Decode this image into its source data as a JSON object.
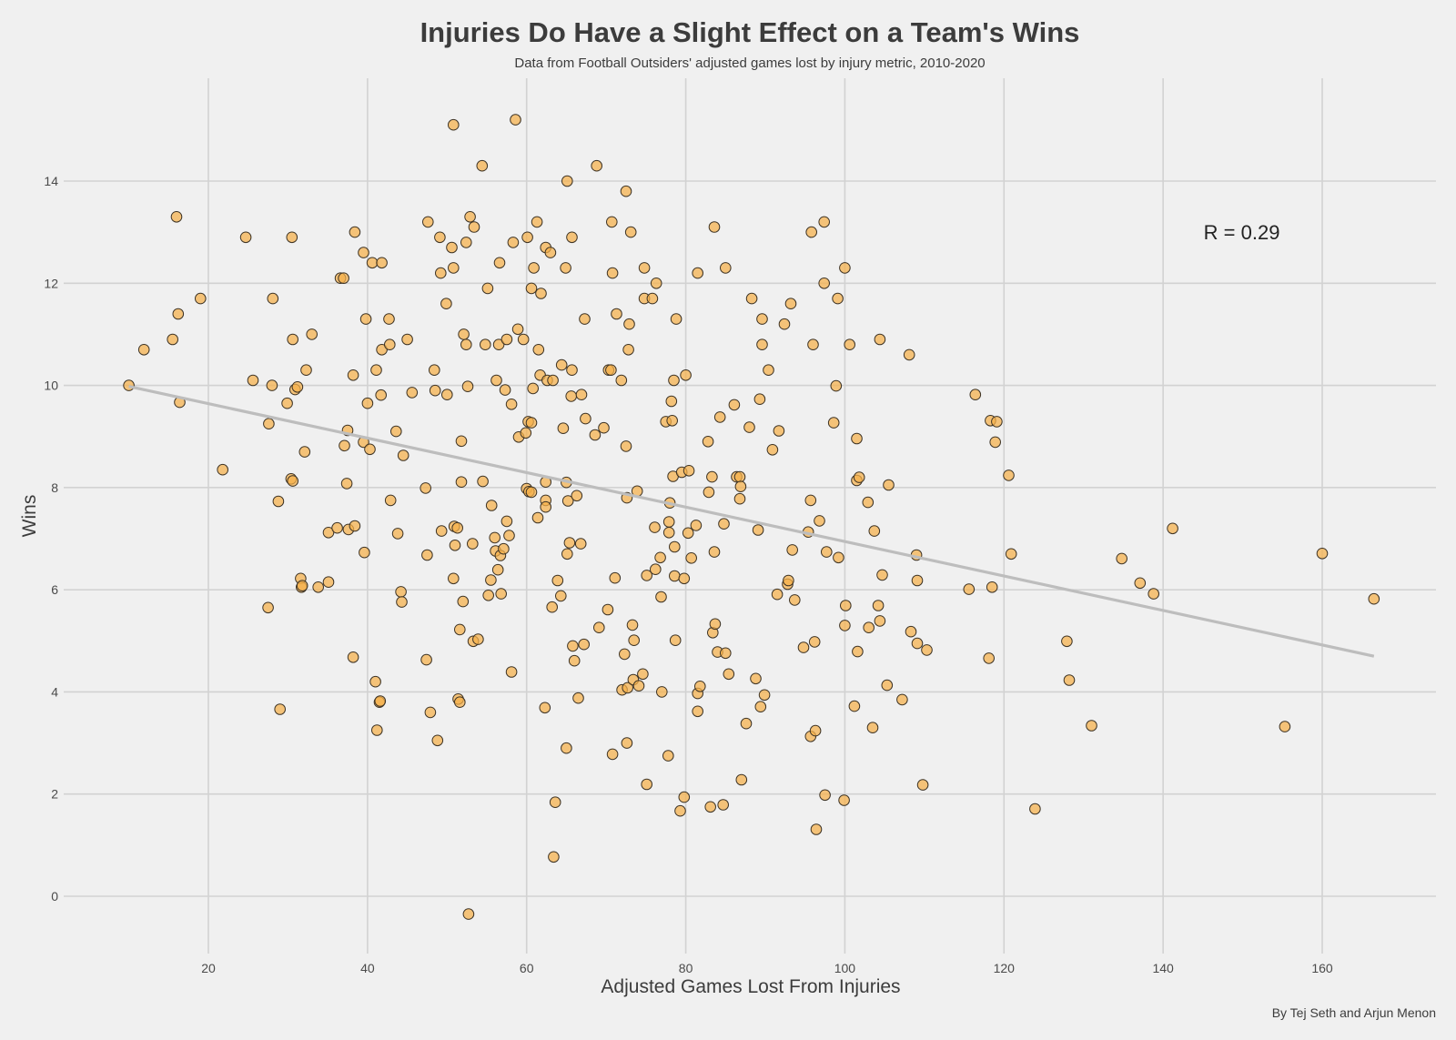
{
  "chart_data": {
    "type": "scatter",
    "title": "Injuries Do Have a Slight Effect on a Team's Wins",
    "subtitle": "Data from Football Outsiders' adjusted games lost by injury metric, 2010-2020",
    "xlabel": "Adjusted Games Lost From Injuries",
    "ylabel": "Wins",
    "caption": "By Tej Seth and Arjun Menon",
    "annotation": {
      "text": "R = 0.29",
      "x": 150,
      "y": 13
    },
    "xlim": [
      0.5,
      175
    ],
    "ylim": [
      -1.2,
      15.6
    ],
    "xticks": [
      20,
      40,
      60,
      80,
      100,
      120,
      140,
      160
    ],
    "yticks": [
      0,
      2,
      4,
      6,
      8,
      10,
      12,
      14
    ],
    "grid": true,
    "trend_line": {
      "x": [
        10,
        166.5
      ],
      "y": [
        9.98,
        4.7
      ]
    },
    "colors": {
      "point_fill": "#f5b04a",
      "point_stroke": "#3d3325",
      "trend": "#bdbdbd",
      "grid": "#d2d2d2",
      "background": "#f0f0f0"
    },
    "points": [
      [
        10,
        10
      ],
      [
        11.9,
        10.7
      ],
      [
        15.5,
        10.9
      ],
      [
        16,
        13.3
      ],
      [
        16.2,
        11.4
      ],
      [
        16.4,
        9.67
      ],
      [
        19,
        11.7
      ],
      [
        21.8,
        8.35
      ],
      [
        24.7,
        12.9
      ],
      [
        25.6,
        10.1
      ],
      [
        27.5,
        5.65
      ],
      [
        27.6,
        9.25
      ],
      [
        28,
        10
      ],
      [
        28.1,
        11.7
      ],
      [
        28.8,
        7.73
      ],
      [
        29,
        3.66
      ],
      [
        29.9,
        9.65
      ],
      [
        30.4,
        8.17
      ],
      [
        30.5,
        12.9
      ],
      [
        30.6,
        10.9
      ],
      [
        30.6,
        8.13
      ],
      [
        30.9,
        9.92
      ],
      [
        31.2,
        9.97
      ],
      [
        31.6,
        6.22
      ],
      [
        31.7,
        6.05
      ],
      [
        31.8,
        6.08
      ],
      [
        32.1,
        8.7
      ],
      [
        32.3,
        10.3
      ],
      [
        33,
        11
      ],
      [
        33.8,
        6.05
      ],
      [
        35.1,
        7.12
      ],
      [
        35.1,
        6.15
      ],
      [
        36.2,
        7.21
      ],
      [
        36.6,
        12.1
      ],
      [
        37,
        12.1
      ],
      [
        37.1,
        8.82
      ],
      [
        37.4,
        8.08
      ],
      [
        37.5,
        9.12
      ],
      [
        37.6,
        7.18
      ],
      [
        38.2,
        10.2
      ],
      [
        38.2,
        4.68
      ],
      [
        38.4,
        13
      ],
      [
        38.4,
        7.25
      ],
      [
        39.5,
        12.6
      ],
      [
        39.5,
        8.89
      ],
      [
        39.6,
        6.73
      ],
      [
        39.8,
        11.3
      ],
      [
        40,
        9.65
      ],
      [
        40.3,
        8.75
      ],
      [
        40.6,
        12.4
      ],
      [
        41,
        4.2
      ],
      [
        41.1,
        10.3
      ],
      [
        41.2,
        3.25
      ],
      [
        41.5,
        3.8
      ],
      [
        41.6,
        3.82
      ],
      [
        41.7,
        9.81
      ],
      [
        41.8,
        10.7
      ],
      [
        41.8,
        12.4
      ],
      [
        42.7,
        11.3
      ],
      [
        42.8,
        10.8
      ],
      [
        42.9,
        7.75
      ],
      [
        43.6,
        9.1
      ],
      [
        43.8,
        7.1
      ],
      [
        44.2,
        5.96
      ],
      [
        44.3,
        5.76
      ],
      [
        44.5,
        8.63
      ],
      [
        45,
        10.9
      ],
      [
        45.6,
        9.86
      ],
      [
        47.3,
        7.99
      ],
      [
        47.4,
        4.63
      ],
      [
        47.5,
        6.68
      ],
      [
        47.6,
        13.2
      ],
      [
        47.9,
        3.6
      ],
      [
        48.4,
        10.3
      ],
      [
        48.5,
        9.9
      ],
      [
        48.8,
        3.05
      ],
      [
        49.1,
        12.9
      ],
      [
        49.2,
        12.2
      ],
      [
        49.3,
        7.15
      ],
      [
        49.9,
        11.6
      ],
      [
        50,
        9.82
      ],
      [
        50.6,
        12.7
      ],
      [
        50.8,
        15.1
      ],
      [
        50.8,
        12.3
      ],
      [
        50.8,
        6.22
      ],
      [
        50.9,
        7.24
      ],
      [
        51,
        6.87
      ],
      [
        51.3,
        7.21
      ],
      [
        51.4,
        3.86
      ],
      [
        51.6,
        5.22
      ],
      [
        51.6,
        3.8
      ],
      [
        51.8,
        8.11
      ],
      [
        51.8,
        8.91
      ],
      [
        52,
        5.77
      ],
      [
        52.1,
        11
      ],
      [
        52.4,
        12.8
      ],
      [
        52.4,
        10.8
      ],
      [
        52.6,
        9.98
      ],
      [
        52.7,
        -0.35
      ],
      [
        52.9,
        13.3
      ],
      [
        53.2,
        6.9
      ],
      [
        53.3,
        4.99
      ],
      [
        53.4,
        13.1
      ],
      [
        53.9,
        5.03
      ],
      [
        54.4,
        14.3
      ],
      [
        54.5,
        8.12
      ],
      [
        54.8,
        10.8
      ],
      [
        55.1,
        11.9
      ],
      [
        55.2,
        5.89
      ],
      [
        55.5,
        6.19
      ],
      [
        55.6,
        7.65
      ],
      [
        56,
        7.02
      ],
      [
        56.1,
        6.76
      ],
      [
        56.2,
        10.1
      ],
      [
        56.4,
        6.39
      ],
      [
        56.5,
        10.8
      ],
      [
        56.6,
        12.4
      ],
      [
        56.7,
        6.67
      ],
      [
        56.8,
        5.92
      ],
      [
        57.1,
        6.8
      ],
      [
        57.3,
        9.91
      ],
      [
        57.5,
        10.9
      ],
      [
        57.5,
        7.34
      ],
      [
        57.8,
        7.06
      ],
      [
        58.1,
        9.63
      ],
      [
        58.1,
        4.39
      ],
      [
        58.3,
        12.8
      ],
      [
        58.6,
        15.2
      ],
      [
        58.9,
        11.1
      ],
      [
        59,
        8.99
      ],
      [
        59.6,
        10.9
      ],
      [
        59.9,
        9.07
      ],
      [
        60,
        7.98
      ],
      [
        60.1,
        12.9
      ],
      [
        60.2,
        9.29
      ],
      [
        60.3,
        7.92
      ],
      [
        60.6,
        9.27
      ],
      [
        60.6,
        7.91
      ],
      [
        60.6,
        11.9
      ],
      [
        60.8,
        9.94
      ],
      [
        60.9,
        12.3
      ],
      [
        61.3,
        13.2
      ],
      [
        61.4,
        7.41
      ],
      [
        61.5,
        10.7
      ],
      [
        61.7,
        10.2
      ],
      [
        61.8,
        11.8
      ],
      [
        62.3,
        3.69
      ],
      [
        62.4,
        12.7
      ],
      [
        62.4,
        8.11
      ],
      [
        62.4,
        7.75
      ],
      [
        62.4,
        7.62
      ],
      [
        62.6,
        10.1
      ],
      [
        63,
        12.6
      ],
      [
        63.2,
        5.66
      ],
      [
        63.3,
        10.1
      ],
      [
        63.4,
        0.77
      ],
      [
        63.6,
        1.84
      ],
      [
        63.9,
        6.18
      ],
      [
        64.3,
        5.88
      ],
      [
        64.4,
        10.4
      ],
      [
        64.6,
        9.16
      ],
      [
        64.9,
        12.3
      ],
      [
        65,
        8.1
      ],
      [
        65,
        2.9
      ],
      [
        65.1,
        6.7
      ],
      [
        65.1,
        14
      ],
      [
        65.2,
        7.74
      ],
      [
        65.4,
        6.92
      ],
      [
        65.6,
        9.79
      ],
      [
        65.7,
        12.9
      ],
      [
        65.7,
        10.3
      ],
      [
        65.8,
        4.9
      ],
      [
        66,
        4.61
      ],
      [
        66.3,
        7.84
      ],
      [
        66.5,
        3.88
      ],
      [
        66.8,
        6.9
      ],
      [
        66.9,
        9.82
      ],
      [
        67.2,
        4.93
      ],
      [
        67.3,
        11.3
      ],
      [
        67.4,
        9.35
      ],
      [
        68.6,
        9.03
      ],
      [
        68.8,
        14.3
      ],
      [
        69.1,
        5.26
      ],
      [
        69.7,
        9.17
      ],
      [
        70.2,
        5.61
      ],
      [
        70.3,
        10.3
      ],
      [
        70.6,
        10.3
      ],
      [
        70.7,
        13.2
      ],
      [
        70.8,
        2.78
      ],
      [
        70.8,
        12.2
      ],
      [
        71.1,
        6.23
      ],
      [
        71.3,
        11.4
      ],
      [
        71.9,
        10.1
      ],
      [
        72,
        4.04
      ],
      [
        72.3,
        4.74
      ],
      [
        72.5,
        13.8
      ],
      [
        72.5,
        8.81
      ],
      [
        72.6,
        7.8
      ],
      [
        72.6,
        3
      ],
      [
        72.7,
        4.08
      ],
      [
        72.8,
        10.7
      ],
      [
        72.9,
        11.2
      ],
      [
        73.1,
        13
      ],
      [
        73.3,
        5.31
      ],
      [
        73.4,
        4.24
      ],
      [
        73.5,
        5.01
      ],
      [
        73.9,
        7.93
      ],
      [
        74.1,
        4.12
      ],
      [
        74.6,
        4.35
      ],
      [
        74.8,
        12.3
      ],
      [
        74.8,
        11.7
      ],
      [
        75.1,
        6.28
      ],
      [
        75.1,
        2.19
      ],
      [
        75.8,
        11.7
      ],
      [
        76.1,
        7.22
      ],
      [
        76.2,
        6.4
      ],
      [
        76.3,
        12
      ],
      [
        76.8,
        6.63
      ],
      [
        76.9,
        5.86
      ],
      [
        77,
        4
      ],
      [
        77.5,
        9.29
      ],
      [
        77.8,
        2.75
      ],
      [
        77.9,
        7.33
      ],
      [
        77.9,
        7.12
      ],
      [
        78,
        7.7
      ],
      [
        78.2,
        9.69
      ],
      [
        78.3,
        9.31
      ],
      [
        78.4,
        8.22
      ],
      [
        78.5,
        10.1
      ],
      [
        78.6,
        6.27
      ],
      [
        78.6,
        6.84
      ],
      [
        78.7,
        5.01
      ],
      [
        78.8,
        11.3
      ],
      [
        79.3,
        1.67
      ],
      [
        79.5,
        8.3
      ],
      [
        79.8,
        6.22
      ],
      [
        79.8,
        1.94
      ],
      [
        80,
        10.2
      ],
      [
        80.3,
        7.11
      ],
      [
        80.4,
        8.33
      ],
      [
        80.7,
        6.62
      ],
      [
        81.3,
        7.26
      ],
      [
        81.5,
        3.62
      ],
      [
        81.5,
        3.97
      ],
      [
        81.5,
        12.2
      ],
      [
        81.8,
        4.11
      ],
      [
        82.8,
        8.9
      ],
      [
        82.9,
        7.91
      ],
      [
        83.1,
        1.75
      ],
      [
        83.3,
        8.21
      ],
      [
        83.4,
        5.16
      ],
      [
        83.6,
        13.1
      ],
      [
        83.6,
        6.74
      ],
      [
        83.7,
        5.33
      ],
      [
        84,
        4.78
      ],
      [
        84.3,
        9.38
      ],
      [
        84.7,
        1.79
      ],
      [
        84.8,
        7.29
      ],
      [
        85,
        12.3
      ],
      [
        85,
        4.76
      ],
      [
        85.4,
        4.35
      ],
      [
        86.1,
        9.62
      ],
      [
        86.4,
        8.21
      ],
      [
        86.8,
        8.21
      ],
      [
        86.8,
        7.78
      ],
      [
        86.9,
        8.02
      ],
      [
        87,
        2.28
      ],
      [
        87.6,
        3.38
      ],
      [
        88,
        9.18
      ],
      [
        88.3,
        11.7
      ],
      [
        88.8,
        4.26
      ],
      [
        89.1,
        7.17
      ],
      [
        89.3,
        9.73
      ],
      [
        89.4,
        3.71
      ],
      [
        89.6,
        11.3
      ],
      [
        89.6,
        10.8
      ],
      [
        89.9,
        3.94
      ],
      [
        90.4,
        10.3
      ],
      [
        90.9,
        8.74
      ],
      [
        91.5,
        5.91
      ],
      [
        91.7,
        9.11
      ],
      [
        92.4,
        11.2
      ],
      [
        92.8,
        6.11
      ],
      [
        92.9,
        6.18
      ],
      [
        93.2,
        11.6
      ],
      [
        93.4,
        6.78
      ],
      [
        93.7,
        5.8
      ],
      [
        94.8,
        4.87
      ],
      [
        95.4,
        7.13
      ],
      [
        95.7,
        7.75
      ],
      [
        95.7,
        3.13
      ],
      [
        95.8,
        13
      ],
      [
        96,
        10.8
      ],
      [
        96.2,
        4.98
      ],
      [
        96.3,
        3.24
      ],
      [
        96.4,
        1.31
      ],
      [
        96.8,
        7.35
      ],
      [
        97.4,
        13.2
      ],
      [
        97.4,
        12
      ],
      [
        97.5,
        1.98
      ],
      [
        97.7,
        6.74
      ],
      [
        98.6,
        9.27
      ],
      [
        98.9,
        9.99
      ],
      [
        99.1,
        11.7
      ],
      [
        99.2,
        6.63
      ],
      [
        99.9,
        1.88
      ],
      [
        100,
        12.3
      ],
      [
        100,
        5.3
      ],
      [
        100.1,
        5.69
      ],
      [
        100.6,
        10.8
      ],
      [
        101.2,
        3.72
      ],
      [
        101.5,
        8.96
      ],
      [
        101.5,
        8.14
      ],
      [
        101.6,
        4.79
      ],
      [
        101.8,
        8.2
      ],
      [
        102.9,
        7.71
      ],
      [
        103,
        5.26
      ],
      [
        103.5,
        3.3
      ],
      [
        103.7,
        7.15
      ],
      [
        104.2,
        5.69
      ],
      [
        104.4,
        5.39
      ],
      [
        104.4,
        10.9
      ],
      [
        104.7,
        6.29
      ],
      [
        105.3,
        4.13
      ],
      [
        105.5,
        8.05
      ],
      [
        107.2,
        3.85
      ],
      [
        108.1,
        10.6
      ],
      [
        108.3,
        5.18
      ],
      [
        109,
        6.68
      ],
      [
        109.1,
        6.18
      ],
      [
        109.1,
        4.95
      ],
      [
        109.8,
        2.18
      ],
      [
        110.3,
        4.82
      ],
      [
        115.6,
        6.01
      ],
      [
        116.4,
        9.82
      ],
      [
        118.1,
        4.66
      ],
      [
        118.3,
        9.31
      ],
      [
        118.5,
        6.05
      ],
      [
        118.9,
        8.89
      ],
      [
        119.1,
        9.29
      ],
      [
        120.6,
        8.24
      ],
      [
        120.9,
        6.7
      ],
      [
        123.9,
        1.71
      ],
      [
        127.9,
        4.99
      ],
      [
        128.2,
        4.23
      ],
      [
        131,
        3.34
      ],
      [
        134.8,
        6.61
      ],
      [
        137.1,
        6.13
      ],
      [
        138.8,
        5.92
      ],
      [
        141.2,
        7.2
      ],
      [
        155.3,
        3.32
      ],
      [
        160,
        6.71
      ],
      [
        166.5,
        5.82
      ]
    ]
  }
}
